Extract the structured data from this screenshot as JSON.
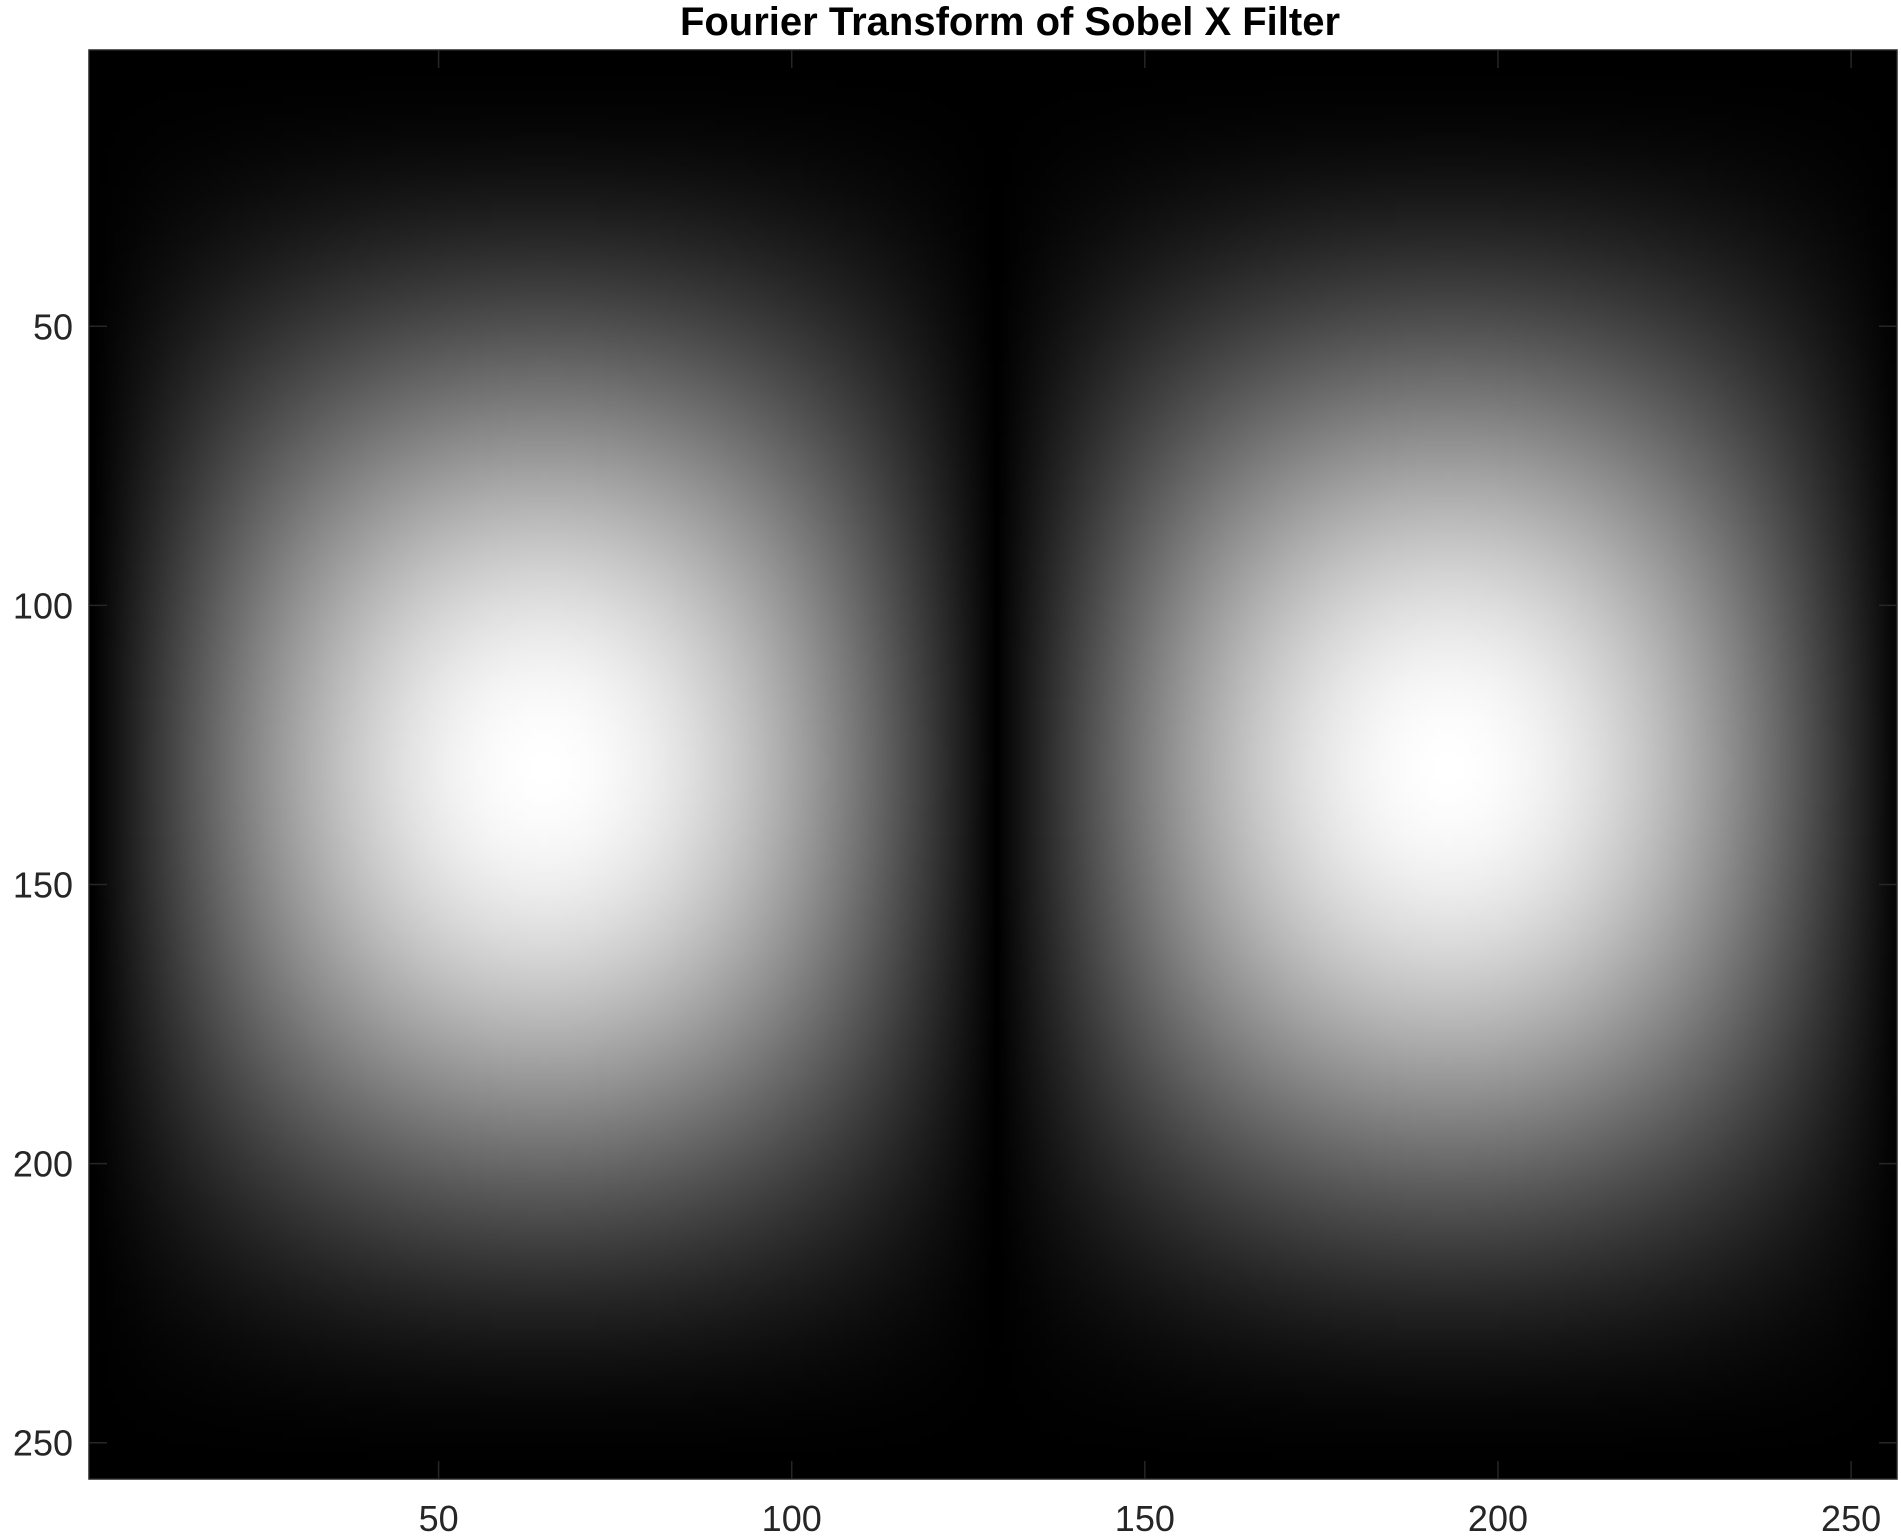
{
  "chart_data": {
    "type": "heatmap",
    "title": "Fourier Transform of Sobel X Filter",
    "xlabel": "",
    "ylabel": "",
    "colormap": "gray",
    "xlim": [
      0.5,
      256.5
    ],
    "ylim": [
      0.5,
      256.5
    ],
    "y_direction": "reverse",
    "xticks": [
      50,
      100,
      150,
      200,
      250
    ],
    "yticks": [
      50,
      100,
      150,
      200,
      250
    ],
    "grid": false,
    "legend": "none",
    "image": {
      "width": 256,
      "height": 256,
      "description_formula": "|H(u,v)| = |sin(2*pi*(u-129)/256)| * (1 + cos(2*pi*(v-129)/256)) / 2",
      "peaks": [
        {
          "x": 65,
          "y": 129,
          "value": 1.0
        },
        {
          "x": 193,
          "y": 129,
          "value": 1.0
        }
      ],
      "zero_column_x": 129
    },
    "colors": {
      "background": "#ffffff",
      "axes": "#262626"
    }
  }
}
